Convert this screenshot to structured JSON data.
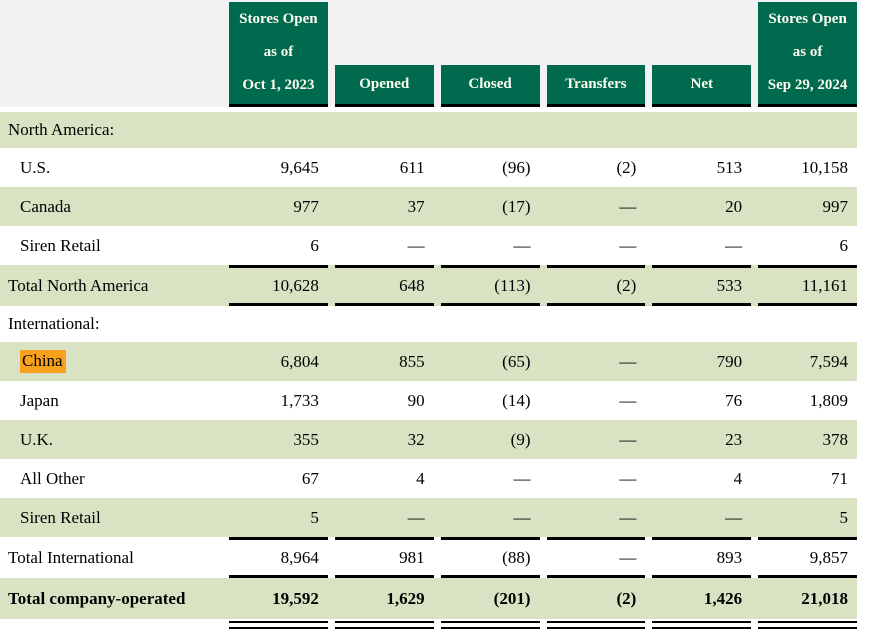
{
  "colors": {
    "header_green": "#006a4e",
    "header_text": "#fffdf0",
    "row_green": "#d9e3c3",
    "header_band_gray": "#f2f2f2",
    "highlight_orange": "#f7a11d",
    "rule_black": "#000000"
  },
  "table": {
    "columns": [
      {
        "id": "row-label-spacer",
        "lines": [],
        "tall": false
      },
      {
        "id": "stores-open-oct-1-2023",
        "lines": [
          "Stores Open",
          "as of",
          "Oct 1, 2023"
        ],
        "tall": true
      },
      {
        "id": "opened",
        "lines": [
          "Opened"
        ],
        "tall": false
      },
      {
        "id": "closed",
        "lines": [
          "Closed"
        ],
        "tall": false
      },
      {
        "id": "transfers",
        "lines": [
          "Transfers"
        ],
        "tall": false
      },
      {
        "id": "net",
        "lines": [
          "Net"
        ],
        "tall": false
      },
      {
        "id": "stores-open-sep-29-2024",
        "lines": [
          "Stores Open",
          "as of",
          "Sep 29, 2024"
        ],
        "tall": true
      }
    ],
    "rows": [
      {
        "label": "North America:",
        "kind": "section",
        "indent": 0,
        "bg": "green",
        "values": [
          "",
          "",
          "",
          "",
          "",
          ""
        ]
      },
      {
        "label": "U.S.",
        "kind": "data",
        "indent": 1,
        "bg": "white",
        "values": [
          "9,645",
          "611",
          "(96)",
          "(2)",
          "513",
          "10,158"
        ]
      },
      {
        "label": "Canada",
        "kind": "data",
        "indent": 1,
        "bg": "green",
        "values": [
          "977",
          "37",
          "(17)",
          "—",
          "20",
          "997"
        ]
      },
      {
        "label": "Siren Retail",
        "kind": "data",
        "indent": 1,
        "bg": "white",
        "values": [
          "6",
          "—",
          "—",
          "—",
          "—",
          "6"
        ]
      },
      {
        "label": "Total North America",
        "kind": "total",
        "indent": 0,
        "bg": "green",
        "rule_top": true,
        "rule_bottom": true,
        "values": [
          "10,628",
          "648",
          "(113)",
          "(2)",
          "533",
          "11,161"
        ]
      },
      {
        "label": "International:",
        "kind": "section",
        "indent": 0,
        "bg": "white",
        "values": [
          "",
          "",
          "",
          "",
          "",
          ""
        ]
      },
      {
        "label": "China",
        "kind": "data",
        "indent": 1,
        "bg": "green",
        "highlight": true,
        "values": [
          "6,804",
          "855",
          "(65)",
          "—",
          "790",
          "7,594"
        ]
      },
      {
        "label": "Japan",
        "kind": "data",
        "indent": 1,
        "bg": "white",
        "values": [
          "1,733",
          "90",
          "(14)",
          "—",
          "76",
          "1,809"
        ]
      },
      {
        "label": "U.K.",
        "kind": "data",
        "indent": 1,
        "bg": "green",
        "values": [
          "355",
          "32",
          "(9)",
          "—",
          "23",
          "378"
        ]
      },
      {
        "label": "All Other",
        "kind": "data",
        "indent": 1,
        "bg": "white",
        "values": [
          "67",
          "4",
          "—",
          "—",
          "4",
          "71"
        ]
      },
      {
        "label": "Siren Retail",
        "kind": "data",
        "indent": 1,
        "bg": "green",
        "values": [
          "5",
          "—",
          "—",
          "—",
          "—",
          "5"
        ]
      },
      {
        "label": "Total International",
        "kind": "total",
        "indent": 0,
        "bg": "white",
        "rule_top": true,
        "rule_bottom": true,
        "values": [
          "8,964",
          "981",
          "(88)",
          "—",
          "893",
          "9,857"
        ]
      },
      {
        "label": "Total company-operated",
        "kind": "total",
        "indent": 0,
        "bg": "green",
        "bold": true,
        "double_underline": true,
        "values": [
          "19,592",
          "1,629",
          "(201)",
          "(2)",
          "1,426",
          "21,018"
        ]
      }
    ]
  }
}
